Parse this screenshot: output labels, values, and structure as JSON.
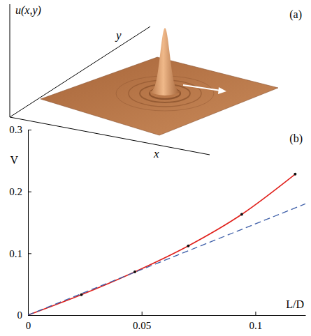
{
  "illustration": {
    "label": "(a)",
    "z_label": "u(x,y)",
    "x_label": "x",
    "y_label": "y"
  },
  "chart_data": {
    "type": "line",
    "title": "(b)",
    "x_label": "L/D",
    "y_label": "V",
    "xlim": [
      0,
      0.122
    ],
    "xticks": [
      0,
      0.05,
      0.1
    ],
    "ylim": [
      0,
      0.3
    ],
    "yticks": [
      0,
      0.1,
      0.2,
      0.3
    ],
    "grid": false,
    "series": [
      {
        "x": [
          0,
          0.0235,
          0.047,
          0.0705,
          0.094,
          0.1175
        ],
        "values": [
          0,
          0.033,
          0.07,
          0.112,
          0.163,
          0.228
        ],
        "color": "#e0201b",
        "line_style": "solid",
        "marker": "circle"
      },
      {
        "x": [
          0,
          0.122
        ],
        "values": [
          0,
          0.18
        ],
        "color": "#3d5ea8",
        "line_style": "dashed",
        "marker": "none"
      }
    ]
  }
}
